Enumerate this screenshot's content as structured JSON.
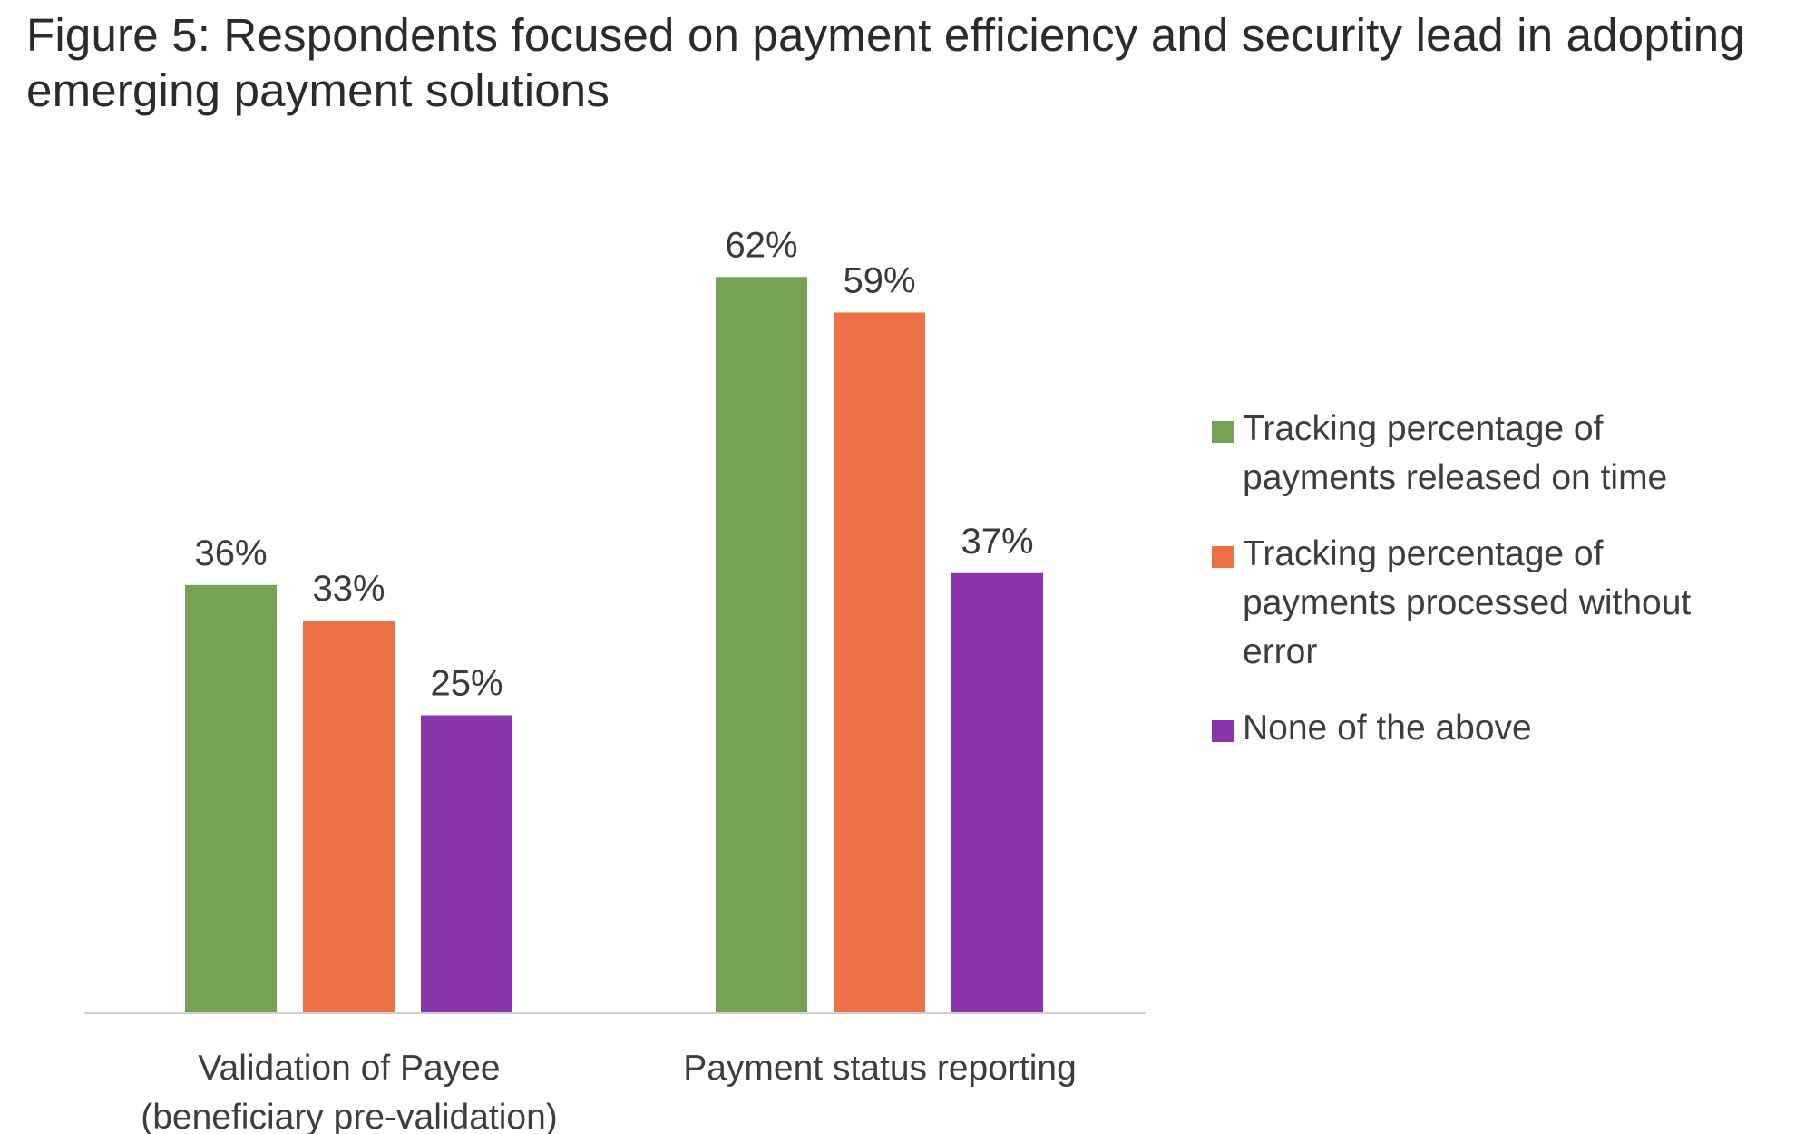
{
  "chart_data": {
    "type": "bar",
    "title": "Figure 5: Respondents focused on payment efficiency and security lead in adopting emerging payment solutions",
    "categories": [
      [
        "Validation of Payee",
        "(beneficiary pre-validation)"
      ],
      [
        "Payment status reporting"
      ]
    ],
    "series": [
      {
        "name": "Tracking percentage of payments released on time",
        "values": [
          36,
          62
        ],
        "color": "#77A155"
      },
      {
        "name": "Tracking percentage of payments processed without error",
        "values": [
          33,
          59
        ],
        "color": "#EC7146"
      },
      {
        "name": "None of the above",
        "values": [
          25,
          37
        ],
        "color": "#8834AA"
      }
    ],
    "value_labels": [
      [
        "36%",
        "62%"
      ],
      [
        "33%",
        "59%"
      ],
      [
        "25%",
        "37%"
      ]
    ],
    "legend_lines": [
      [
        "Tracking percentage of",
        "payments released on time"
      ],
      [
        "Tracking percentage of",
        "payments processed without",
        "error"
      ],
      [
        "None of the above"
      ]
    ],
    "ylim": [
      0,
      70
    ],
    "grid": false,
    "legend_position": "right",
    "xlabel": "",
    "ylabel": ""
  }
}
